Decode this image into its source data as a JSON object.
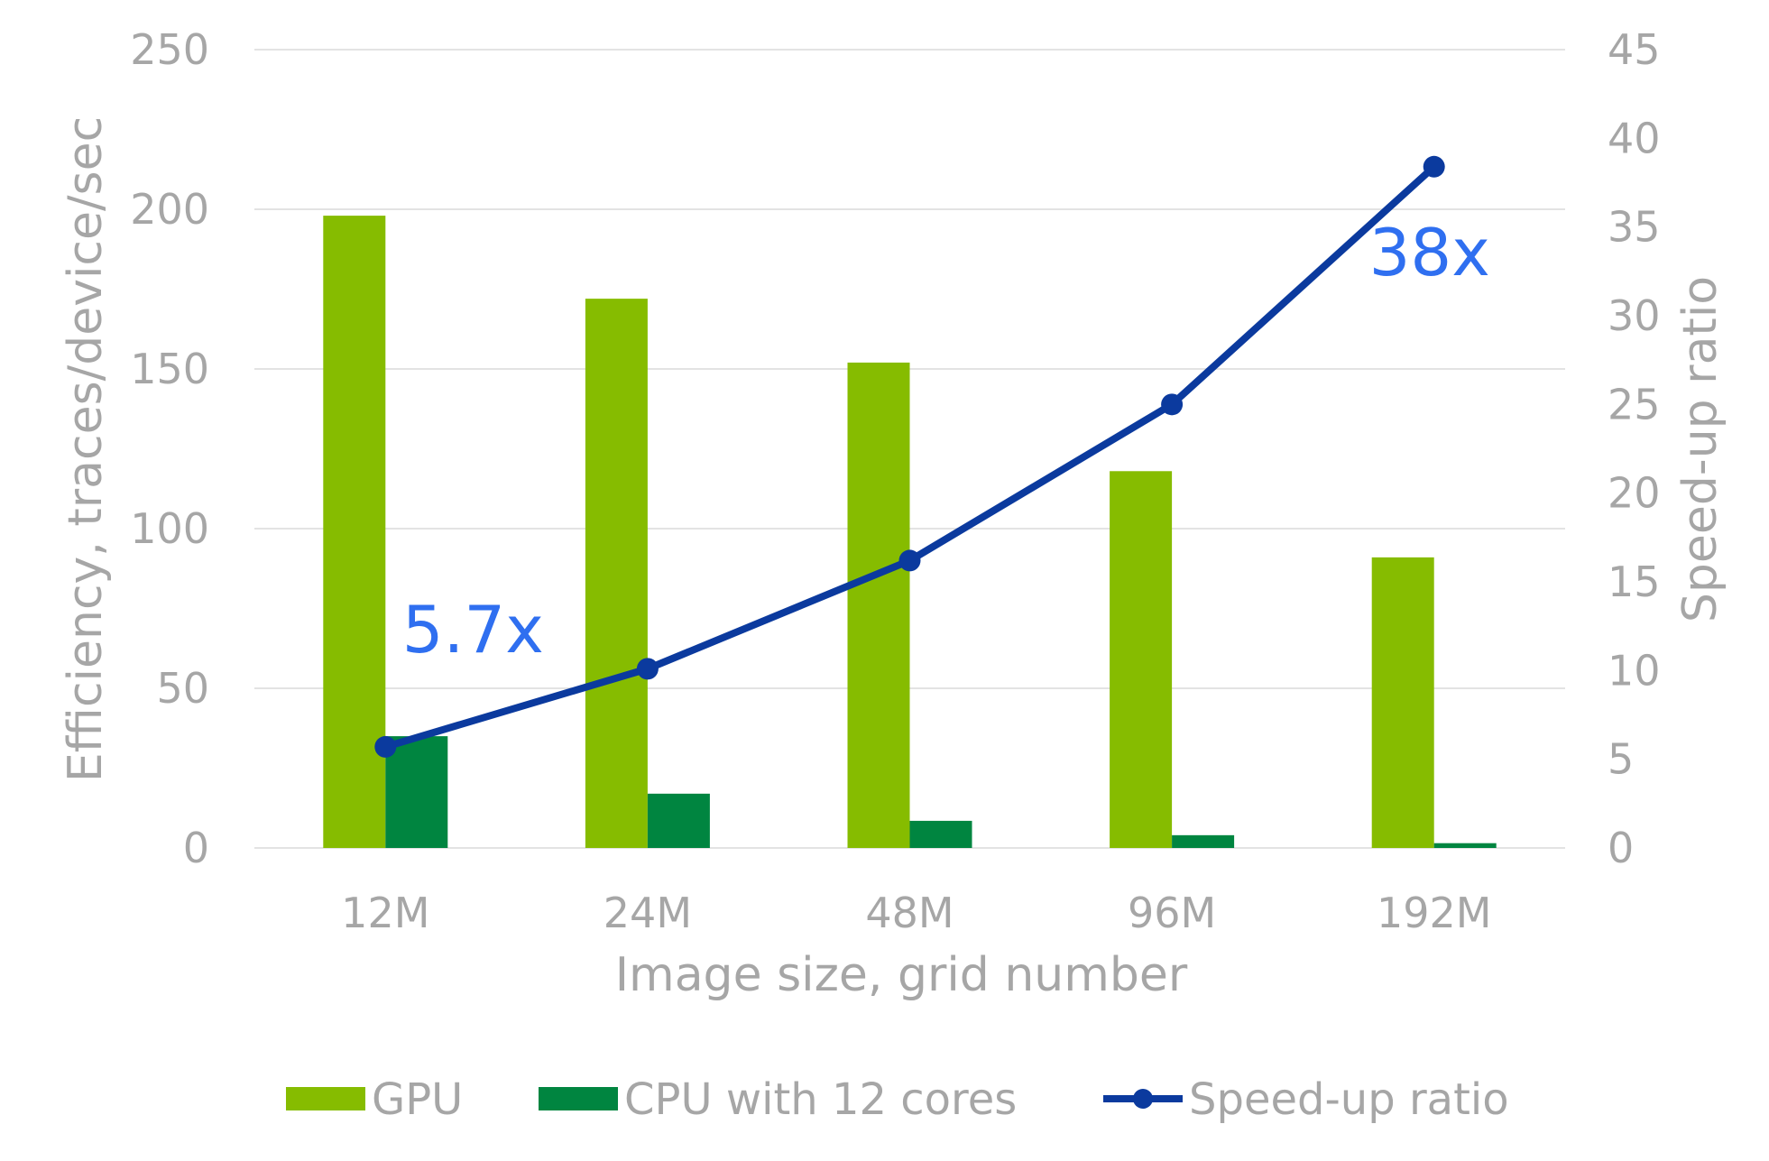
{
  "chart_data": {
    "type": "bar",
    "title": "",
    "categories": [
      "12M",
      "24M",
      "48M",
      "96M",
      "192M"
    ],
    "series": [
      {
        "name": "GPU",
        "kind": "bar",
        "axis": "left",
        "color": "#86bc00",
        "values": [
          198,
          172,
          152,
          118,
          91
        ]
      },
      {
        "name": "CPU with 12 cores",
        "kind": "bar",
        "axis": "left",
        "color": "#008540",
        "values": [
          35,
          17,
          8.5,
          4,
          1.5
        ]
      },
      {
        "name": "Speed-up ratio",
        "kind": "line",
        "axis": "right",
        "color": "#0b3a9e",
        "values": [
          5.7,
          10.1,
          16.2,
          25,
          38.4
        ]
      }
    ],
    "xlabel": "Image size, grid number",
    "ylabel": "Efficiency, traces/device/sec",
    "y2label": "Speed-up ratio",
    "ylim": [
      0,
      250
    ],
    "y2lim": [
      0,
      45
    ],
    "yticks": [
      "0",
      "50",
      "100",
      "150",
      "200",
      "250"
    ],
    "y2ticks": [
      "0",
      "5",
      "10",
      "15",
      "20",
      "25",
      "30",
      "35",
      "40",
      "45"
    ],
    "grid": true,
    "legend_position": "bottom",
    "annotations": [
      {
        "text": "5.7x",
        "category": "12M",
        "series": "Speed-up ratio"
      },
      {
        "text": "38x",
        "category": "192M",
        "series": "Speed-up ratio"
      }
    ]
  }
}
